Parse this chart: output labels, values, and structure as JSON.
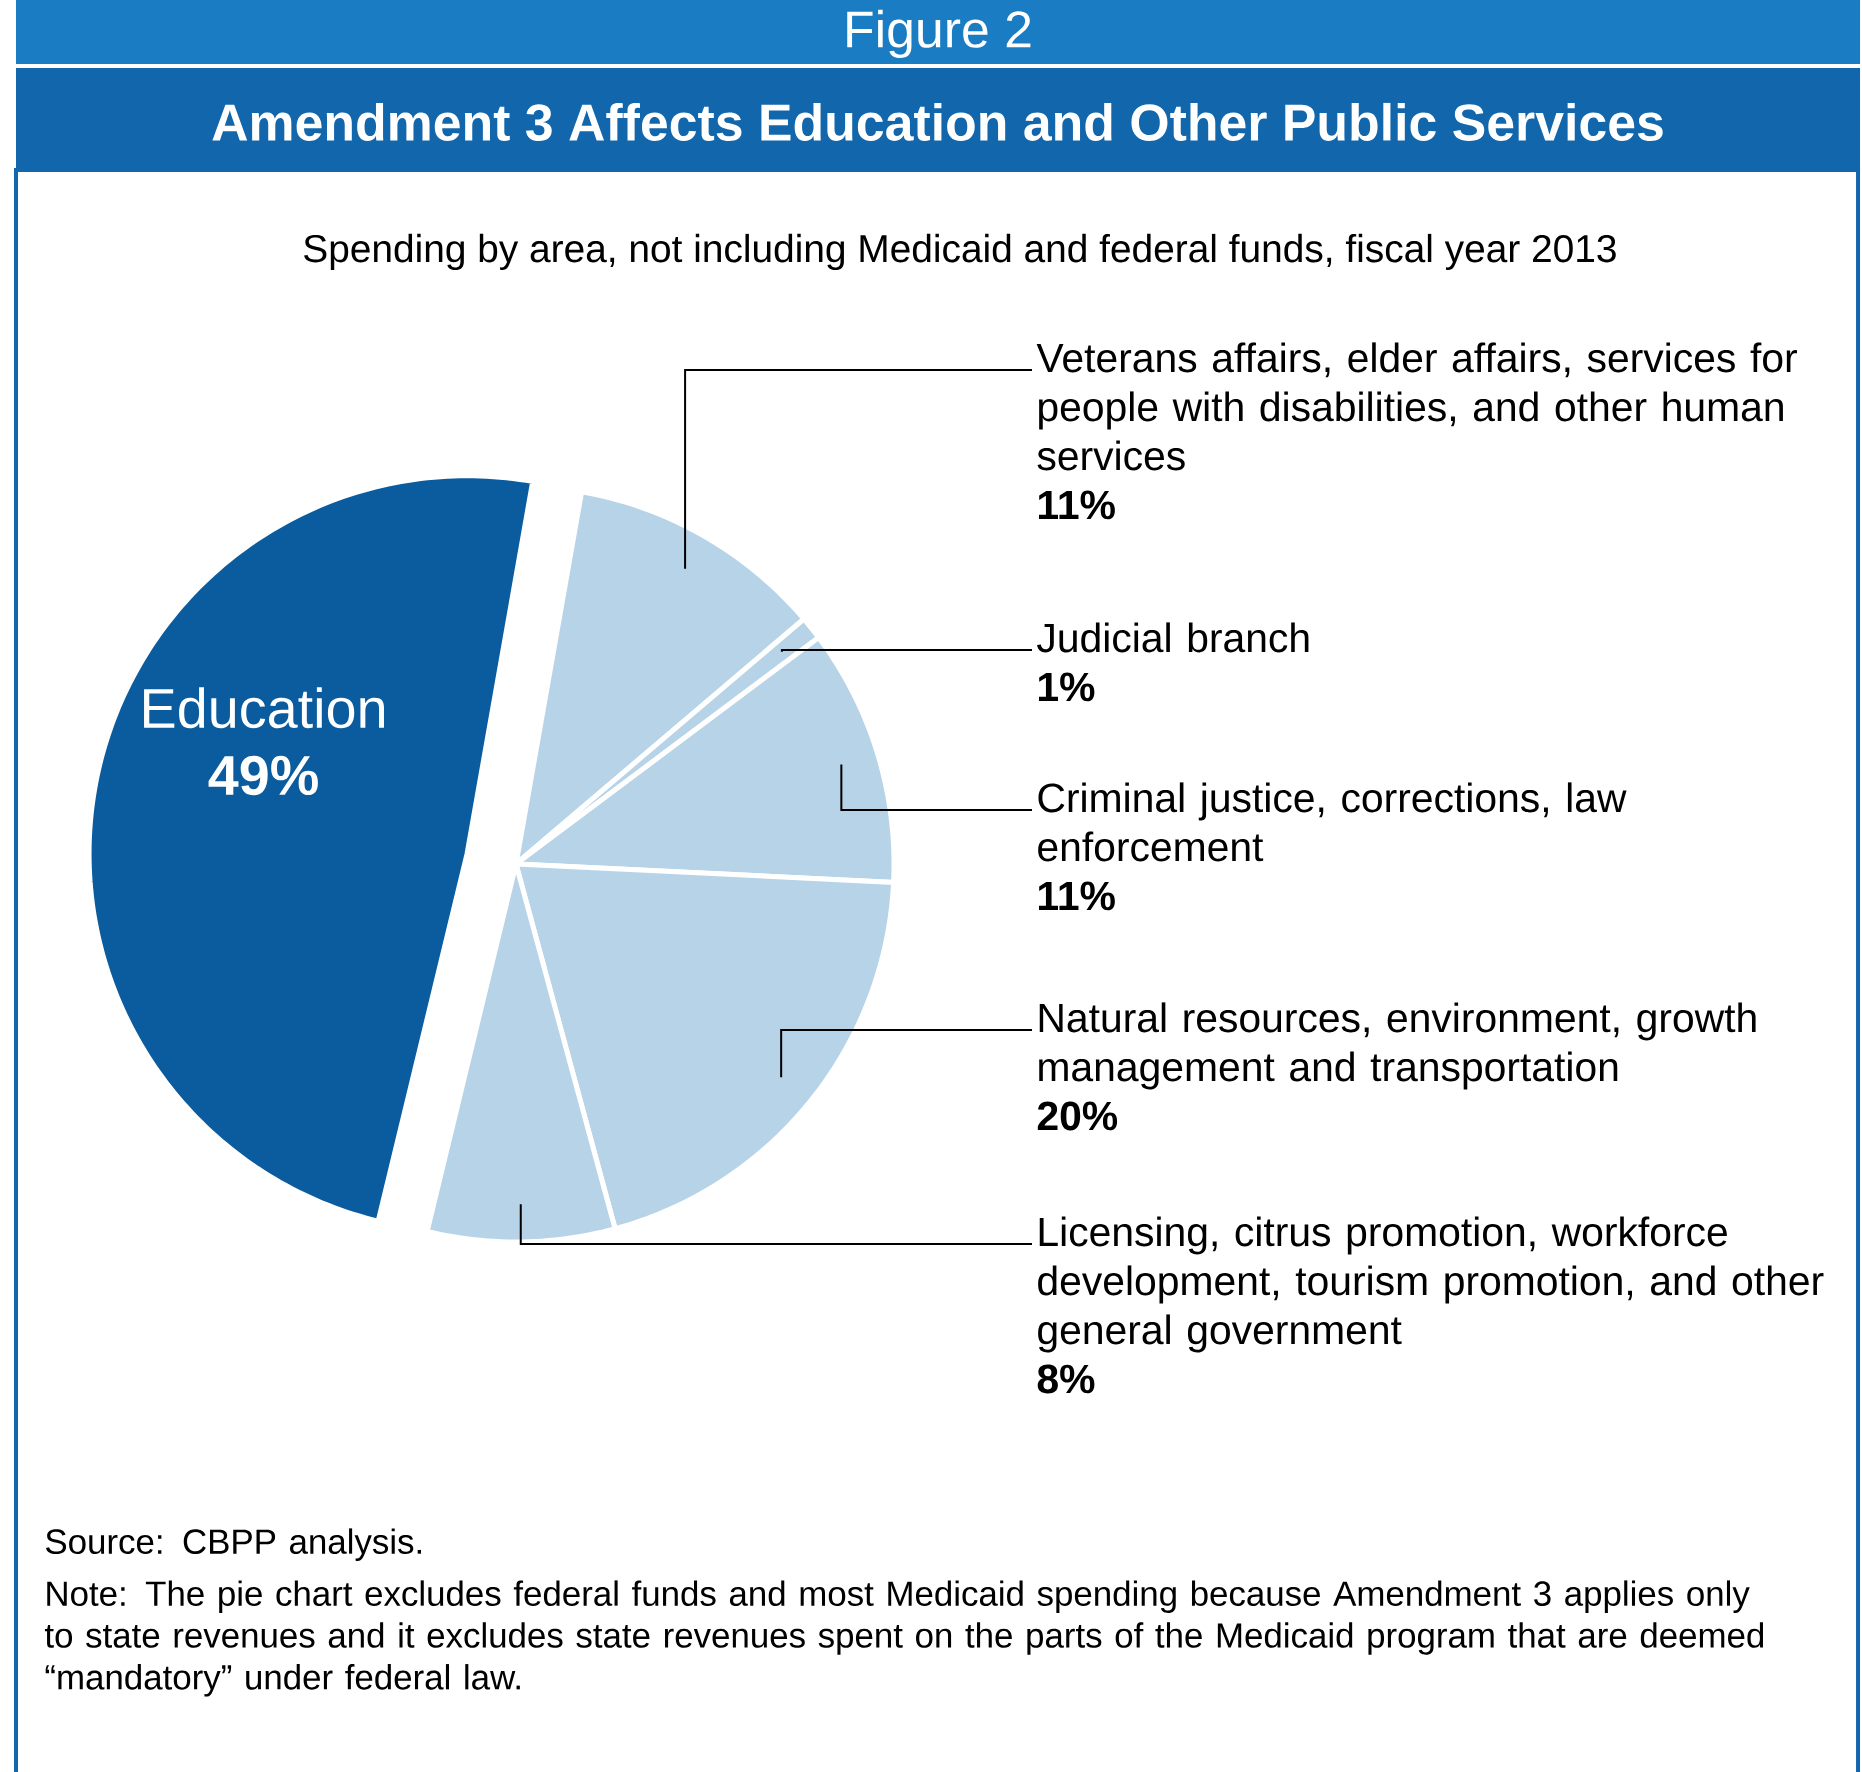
{
  "chart_data": {
    "type": "pie",
    "title": "Amendment 3 Affects Education and Other Public Services",
    "subtitle": "Spending by area, not including Medicaid and federal funds, fiscal year 2013",
    "categories": [
      "Education",
      "Veterans affairs, elder affairs, services for people with disabilities, and other human services",
      "Judicial branch",
      "Criminal justice, corrections, law enforcement",
      "Natural resources, environment, growth management and transportation",
      "Licensing, citrus promotion, workforce development, tourism promotion, and other general government"
    ],
    "values": [
      49,
      11,
      1,
      11,
      20,
      8
    ],
    "colors": [
      "#0b5c9e",
      "#b7d3e8",
      "#b7d3e8",
      "#b7d3e8",
      "#b7d3e8",
      "#b7d3e8"
    ],
    "value_labels": [
      "49%",
      "11%",
      "1%",
      "11%",
      "20%",
      "8%"
    ],
    "annotations": [
      "Figure 2",
      "Source: CBPP analysis.",
      "Note: The pie chart excludes federal funds and most Medicaid spending because Amendment 3 applies only to state revenues and it excludes state revenues spent on the parts of the Medicaid program that are deemed “mandatory” under federal law."
    ]
  }
}
